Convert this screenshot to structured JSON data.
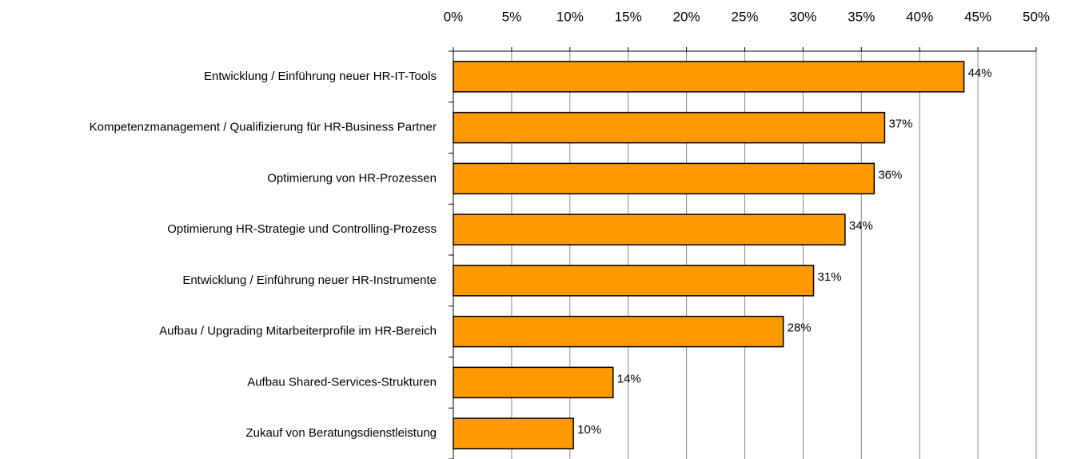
{
  "chart_data": {
    "type": "bar",
    "orientation": "horizontal",
    "categories": [
      "Entwicklung / Einführung neuer HR-IT-Tools",
      "Kompetenzmanagement / Qualifizierung für HR-Business Partner",
      "Optimierung von HR-Prozessen",
      "Optimierung HR-Strategie und Controlling-Prozess",
      "Entwicklung / Einführung neuer HR-Instrumente",
      "Aufbau / Upgrading Mitarbeiterprofile im HR-Bereich",
      "Aufbau Shared-Services-Strukturen",
      "Zukauf von Beratungsdienstleistung"
    ],
    "values": [
      43.8,
      37,
      36.1,
      33.6,
      30.9,
      28.3,
      13.7,
      10.3
    ],
    "value_labels": [
      "44%",
      "37%",
      "36%",
      "34%",
      "31%",
      "28%",
      "14%",
      "10%"
    ],
    "color": "#ff9900",
    "xlim": [
      0,
      50
    ],
    "xticks": [
      {
        "value": 0,
        "label": "0%"
      },
      {
        "value": 5,
        "label": "5%"
      },
      {
        "value": 10,
        "label": "10%"
      },
      {
        "value": 15,
        "label": "15%"
      },
      {
        "value": 20,
        "label": "20%"
      },
      {
        "value": 25,
        "label": "25%"
      },
      {
        "value": 30,
        "label": "30%"
      },
      {
        "value": 35,
        "label": "35%"
      },
      {
        "value": 40,
        "label": "40%"
      },
      {
        "value": 45,
        "label": "45%"
      },
      {
        "value": 50,
        "label": "50%"
      }
    ],
    "grid": true
  }
}
